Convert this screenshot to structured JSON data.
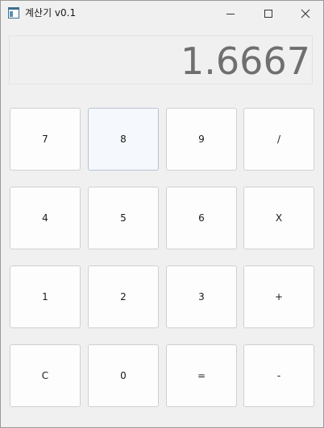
{
  "window": {
    "title": "계산기 v0.1",
    "icon": "app-window-icon",
    "controls": {
      "minimize_icon": "minimize-icon",
      "maximize_icon": "maximize-icon",
      "close_icon": "close-icon"
    }
  },
  "display": {
    "value": "1.6667"
  },
  "keypad": {
    "rows": [
      [
        "7",
        "8",
        "9",
        "/"
      ],
      [
        "4",
        "5",
        "6",
        "X"
      ],
      [
        "1",
        "2",
        "3",
        "+"
      ],
      [
        "C",
        "0",
        "=",
        "-"
      ]
    ]
  },
  "colors": {
    "window_bg": "#f0f0f0",
    "key_bg": "#fdfdfd",
    "key_border": "#d0d0d0",
    "hover_key_bg": "#f5f8fc",
    "display_text": "#6f6f6f"
  }
}
